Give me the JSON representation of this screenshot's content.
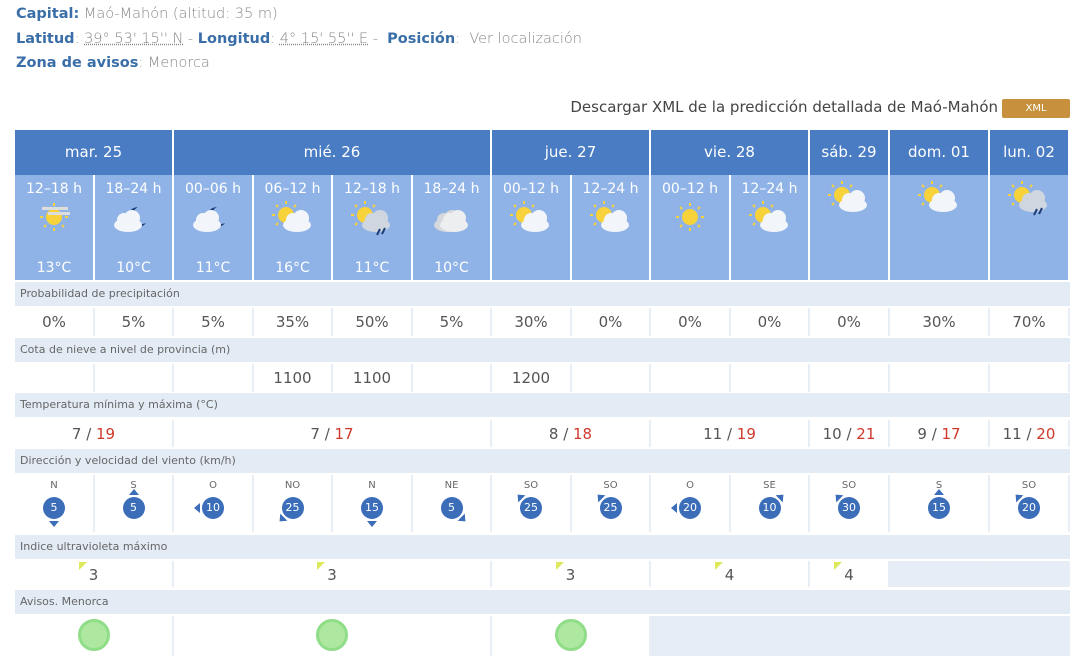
{
  "info": {
    "capital_label": "Capital:",
    "capital": "Maó-Mahón (altitud: 35 m)",
    "lat_label": "Latitud",
    "lat": "39° 53' 15'' N",
    "lon_label": "Longitud",
    "lon": "4° 15' 55'' E",
    "pos_label": "Posición",
    "pos_link": "Ver localización",
    "zona_label": "Zona de avisos",
    "zona": "Menorca"
  },
  "download": {
    "text": "Descargar XML de la predicción detallada de Maó-Mahón",
    "button": "XML"
  },
  "days": [
    {
      "label": "mar. 25",
      "span": 2
    },
    {
      "label": "mié. 26",
      "span": 4
    },
    {
      "label": "jue. 27",
      "span": 2
    },
    {
      "label": "vie. 28",
      "span": 2
    },
    {
      "label": "sáb. 29",
      "span": 1
    },
    {
      "label": "dom. 01",
      "span": 1
    },
    {
      "label": "lun. 02",
      "span": 1
    }
  ],
  "periods": [
    {
      "t": "12–18 h",
      "icon": "sun-haze",
      "temp": "13°C"
    },
    {
      "t": "18–24 h",
      "icon": "moon-cloud",
      "temp": "10°C"
    },
    {
      "t": "00–06 h",
      "icon": "moon-cloud",
      "temp": "11°C"
    },
    {
      "t": "06–12 h",
      "icon": "sun-cloud",
      "temp": "16°C"
    },
    {
      "t": "12–18 h",
      "icon": "sun-cloud-rain",
      "temp": "11°C"
    },
    {
      "t": "18–24 h",
      "icon": "cloud",
      "temp": "10°C"
    },
    {
      "t": "00–12 h",
      "icon": "sun-cloud",
      "temp": ""
    },
    {
      "t": "12–24 h",
      "icon": "sun-cloud",
      "temp": ""
    },
    {
      "t": "00–12 h",
      "icon": "sun",
      "temp": ""
    },
    {
      "t": "12–24 h",
      "icon": "sun-cloud",
      "temp": ""
    },
    {
      "t": "",
      "icon": "sun-cloud",
      "temp": ""
    },
    {
      "t": "",
      "icon": "sun-cloud",
      "temp": ""
    },
    {
      "t": "",
      "icon": "sun-cloud-rain",
      "temp": ""
    }
  ],
  "labels": {
    "precip": "Probabilidad de precipitación",
    "snow": "Cota de nieve a nivel de provincia (m)",
    "temp": "Temperatura mínima y máxima (°C)",
    "wind": "Dirección y velocidad del viento (km/h)",
    "uv": "Indice ultravioleta máximo",
    "avisos": "Avisos. Menorca"
  },
  "precip": [
    "0%",
    "5%",
    "5%",
    "35%",
    "50%",
    "5%",
    "30%",
    "0%",
    "0%",
    "0%",
    "0%",
    "30%",
    "70%"
  ],
  "snow": [
    "",
    "",
    "",
    "1100",
    "1100",
    "",
    "1200",
    "",
    "",
    "",
    "",
    "",
    ""
  ],
  "temps": [
    {
      "min": "7",
      "max": "19",
      "span": 2
    },
    {
      "min": "7",
      "max": "17",
      "span": 4
    },
    {
      "min": "8",
      "max": "18",
      "span": 2
    },
    {
      "min": "11",
      "max": "19",
      "span": 2
    },
    {
      "min": "10",
      "max": "21",
      "span": 1
    },
    {
      "min": "9",
      "max": "17",
      "span": 1
    },
    {
      "min": "11",
      "max": "20",
      "span": 1
    }
  ],
  "wind": [
    {
      "d": "N",
      "v": "5"
    },
    {
      "d": "S",
      "v": "5"
    },
    {
      "d": "O",
      "v": "10"
    },
    {
      "d": "NO",
      "v": "25"
    },
    {
      "d": "N",
      "v": "15"
    },
    {
      "d": "NE",
      "v": "5"
    },
    {
      "d": "SO",
      "v": "25"
    },
    {
      "d": "SO",
      "v": "25"
    },
    {
      "d": "O",
      "v": "20"
    },
    {
      "d": "SE",
      "v": "10"
    },
    {
      "d": "SO",
      "v": "30"
    },
    {
      "d": "S",
      "v": "15"
    },
    {
      "d": "SO",
      "v": "20"
    }
  ],
  "uv": [
    {
      "v": "3",
      "span": 2
    },
    {
      "v": "3",
      "span": 4
    },
    {
      "v": "3",
      "span": 2
    },
    {
      "v": "4",
      "span": 2
    },
    {
      "v": "4",
      "span": 1
    },
    {
      "v": "",
      "span": 1
    },
    {
      "v": "",
      "span": 1
    }
  ],
  "avisos": [
    {
      "level": "green",
      "span": 2
    },
    {
      "level": "green",
      "span": 4
    },
    {
      "level": "green",
      "span": 2
    },
    {
      "level": "",
      "span": 2
    },
    {
      "level": "",
      "span": 1
    },
    {
      "level": "",
      "span": 1
    },
    {
      "level": "",
      "span": 1
    }
  ],
  "colors": {
    "header": "#4a7cc4",
    "period": "#8fb3e6",
    "aviso_green": "#aee8a0",
    "temp_max": "#d0382b"
  }
}
